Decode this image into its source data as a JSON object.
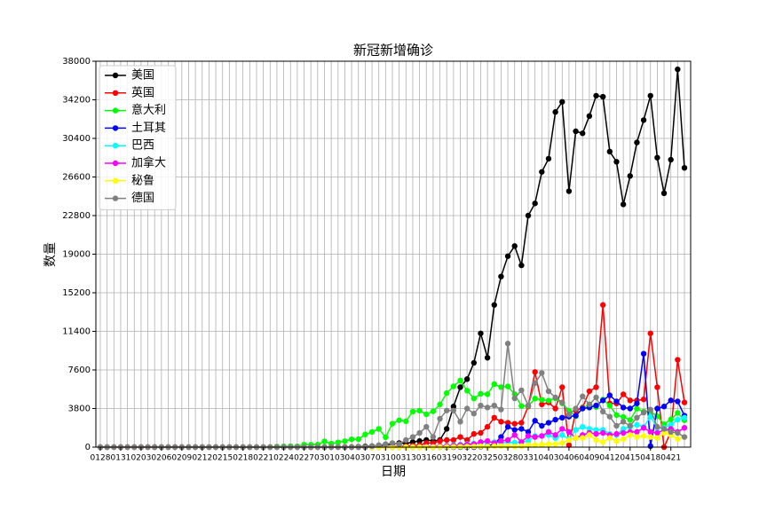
{
  "chart_data": {
    "type": "line",
    "title": "新冠新增确诊",
    "xlabel": "日期",
    "ylabel": "数量",
    "categories": [
      "0128",
      null,
      null,
      "0131",
      null,
      null,
      "0203",
      null,
      null,
      "0206",
      null,
      null,
      "0209",
      null,
      null,
      "0212",
      null,
      null,
      "0215",
      null,
      null,
      "0218",
      null,
      null,
      "0221",
      null,
      null,
      "0224",
      null,
      null,
      "0227",
      null,
      null,
      "0301",
      null,
      null,
      "0304",
      null,
      null,
      "0307",
      null,
      null,
      "0310",
      null,
      null,
      "0313",
      null,
      null,
      "0316",
      null,
      null,
      "0319",
      null,
      null,
      "0322",
      null,
      null,
      "0325",
      null,
      null,
      "0328",
      null,
      null,
      "0331",
      null,
      null,
      "0403",
      null,
      null,
      "0406",
      null,
      null,
      "0409",
      null,
      null,
      "0412",
      null,
      null,
      "0415",
      null,
      null,
      "0418",
      null,
      null,
      "0421",
      null,
      null
    ],
    "ylim": [
      0,
      38000
    ],
    "yticks": [
      0,
      3800,
      7600,
      11400,
      15200,
      19000,
      22800,
      26600,
      30400,
      34200,
      38000
    ],
    "grid": true,
    "legend": "upper left",
    "series": [
      {
        "name": "美国",
        "color": "#000000",
        "values": [
          0,
          0,
          0,
          0,
          0,
          0,
          0,
          0,
          0,
          0,
          0,
          0,
          0,
          0,
          0,
          0,
          0,
          0,
          0,
          0,
          0,
          0,
          0,
          0,
          0,
          0,
          0,
          0,
          0,
          0,
          0,
          1,
          4,
          3,
          9,
          14,
          20,
          23,
          40,
          70,
          100,
          150,
          200,
          300,
          400,
          350,
          500,
          600,
          700,
          600,
          700,
          1800,
          4000,
          5900,
          6700,
          8300,
          11200,
          8800,
          14000,
          16800,
          18800,
          19800,
          17900,
          22800,
          24000,
          27100,
          28400,
          33000,
          34000,
          25200,
          31100,
          30900,
          32600,
          34600,
          34500,
          29100,
          28100,
          23900,
          26700,
          30000,
          32200,
          34600,
          28500,
          25000,
          28300,
          37200,
          27500
        ]
      },
      {
        "name": "英国",
        "color": "#ff0000",
        "values": [
          0,
          0,
          0,
          0,
          0,
          0,
          0,
          0,
          0,
          0,
          0,
          0,
          0,
          0,
          0,
          0,
          0,
          0,
          0,
          0,
          0,
          0,
          0,
          0,
          0,
          0,
          0,
          0,
          0,
          0,
          0,
          0,
          0,
          0,
          0,
          0,
          0,
          0,
          0,
          0,
          10,
          20,
          30,
          50,
          80,
          100,
          150,
          200,
          400,
          400,
          600,
          700,
          700,
          1000,
          700,
          1300,
          1400,
          2000,
          2900,
          2500,
          2400,
          2300,
          2400,
          4000,
          7400,
          4200,
          4400,
          3800,
          5900,
          200,
          3600,
          3900,
          5500,
          5900,
          14000,
          4300,
          4300,
          5200,
          4600,
          4600,
          4700,
          11200,
          5900,
          0,
          1500,
          8600,
          4400
        ]
      },
      {
        "name": "意大利",
        "color": "#00ff00",
        "values": [
          0,
          0,
          0,
          0,
          0,
          0,
          0,
          0,
          0,
          0,
          0,
          0,
          0,
          0,
          0,
          0,
          0,
          0,
          0,
          0,
          0,
          0,
          0,
          0,
          0,
          17,
          62,
          76,
          93,
          78,
          250,
          238,
          240,
          566,
          342,
          466,
          587,
          769,
          778,
          1247,
          1492,
          1797,
          977,
          2313,
          2651,
          2547,
          3497,
          3590,
          3233,
          3526,
          4207,
          5322,
          5986,
          6557,
          5560,
          4789,
          5249,
          5210,
          6203,
          5909,
          5974,
          5217,
          4050,
          4053,
          4782,
          4668,
          4585,
          4805,
          4316,
          3599,
          3039,
          3836,
          4204,
          3951,
          4694,
          4092,
          3153,
          2972,
          2667,
          3786,
          3493,
          3491,
          3047,
          2256,
          2729,
          3370,
          2646
        ]
      },
      {
        "name": "土耳其",
        "color": "#0000ff",
        "values": [
          0,
          0,
          0,
          0,
          0,
          0,
          0,
          0,
          0,
          0,
          0,
          0,
          0,
          0,
          0,
          0,
          0,
          0,
          0,
          0,
          0,
          0,
          0,
          0,
          0,
          0,
          0,
          0,
          0,
          0,
          0,
          0,
          0,
          0,
          0,
          0,
          0,
          0,
          0,
          0,
          0,
          0,
          0,
          0,
          0,
          0,
          0,
          0,
          0,
          0,
          0,
          0,
          0,
          0,
          0,
          0,
          50,
          100,
          300,
          1000,
          2000,
          1700,
          1800,
          1500,
          2600,
          2100,
          2400,
          2700,
          2900,
          3000,
          3100,
          3800,
          3900,
          4100,
          4600,
          5100,
          4500,
          3900,
          3800,
          4300,
          9200,
          100,
          3800,
          4000,
          4600,
          4500,
          3100
        ]
      },
      {
        "name": "巴西",
        "color": "#00ffff",
        "values": [
          0,
          0,
          0,
          0,
          0,
          0,
          0,
          0,
          0,
          0,
          0,
          0,
          0,
          0,
          0,
          0,
          0,
          0,
          0,
          0,
          0,
          0,
          0,
          0,
          0,
          0,
          0,
          0,
          0,
          0,
          0,
          0,
          0,
          0,
          0,
          0,
          0,
          0,
          0,
          0,
          0,
          0,
          0,
          0,
          0,
          10,
          20,
          30,
          50,
          60,
          100,
          150,
          200,
          250,
          300,
          350,
          400,
          500,
          500,
          400,
          500,
          450,
          500,
          600,
          1100,
          1100,
          1200,
          900,
          1200,
          800,
          1700,
          2000,
          1800,
          1700,
          1700,
          1300,
          1200,
          1800,
          2000,
          2200,
          2000,
          3000,
          1900,
          1900,
          2200,
          2700,
          2900
        ]
      },
      {
        "name": "加拿大",
        "color": "#ff00ff",
        "values": [
          0,
          0,
          0,
          0,
          0,
          0,
          0,
          0,
          0,
          0,
          0,
          0,
          0,
          0,
          0,
          0,
          0,
          0,
          0,
          0,
          0,
          0,
          0,
          0,
          0,
          0,
          0,
          0,
          0,
          0,
          0,
          0,
          0,
          0,
          0,
          0,
          0,
          0,
          0,
          0,
          0,
          0,
          0,
          0,
          0,
          10,
          20,
          30,
          50,
          80,
          100,
          120,
          150,
          200,
          250,
          300,
          500,
          600,
          400,
          600,
          700,
          1200,
          500,
          1100,
          1000,
          1100,
          1500,
          1200,
          1800,
          1500,
          900,
          1200,
          1400,
          1300,
          1400,
          1200,
          1300,
          1400,
          1500,
          1500,
          1900,
          1500,
          1400,
          1700,
          1800,
          1500,
          1900
        ]
      },
      {
        "name": "秘鲁",
        "color": "#ffff00",
        "values": [
          0,
          0,
          0,
          0,
          0,
          0,
          0,
          0,
          0,
          0,
          0,
          0,
          0,
          0,
          0,
          0,
          0,
          0,
          0,
          0,
          0,
          0,
          0,
          0,
          0,
          0,
          0,
          0,
          0,
          0,
          0,
          0,
          0,
          0,
          0,
          0,
          0,
          0,
          0,
          0,
          0,
          0,
          0,
          0,
          0,
          0,
          0,
          0,
          0,
          0,
          10,
          20,
          30,
          40,
          50,
          60,
          80,
          50,
          100,
          100,
          100,
          60,
          100,
          200,
          200,
          250,
          300,
          300,
          400,
          700,
          900,
          900,
          1200,
          700,
          500,
          900,
          600,
          800,
          1200,
          1000,
          1100,
          1000,
          900,
          1400,
          1200,
          800,
          1000
        ]
      },
      {
        "name": "德国",
        "color": "#808080",
        "values": [
          0,
          0,
          0,
          0,
          0,
          0,
          0,
          0,
          0,
          0,
          0,
          0,
          0,
          0,
          0,
          0,
          0,
          0,
          0,
          0,
          0,
          0,
          0,
          0,
          0,
          0,
          0,
          0,
          0,
          0,
          0,
          0,
          0,
          0,
          0,
          0,
          0,
          0,
          0,
          0,
          100,
          200,
          300,
          400,
          300,
          700,
          1000,
          1400,
          2000,
          1000,
          2800,
          3600,
          3600,
          2500,
          3800,
          3300,
          4100,
          3900,
          4100,
          3700,
          10200,
          4800,
          5600,
          4100,
          6300,
          7300,
          5500,
          4900,
          4400,
          3200,
          3800,
          5000,
          4200,
          4900,
          3500,
          3000,
          2100,
          2500,
          2100,
          2900,
          3400,
          3700,
          2000,
          1800,
          1500,
          1400,
          1000
        ]
      }
    ]
  }
}
